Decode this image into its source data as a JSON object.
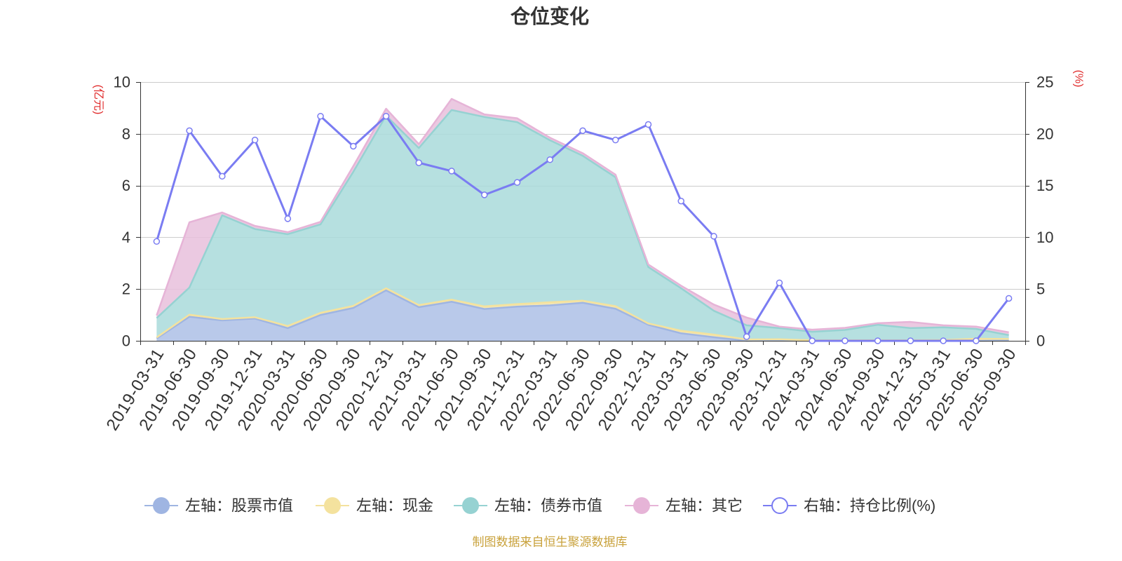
{
  "source_note": "制图数据来自恒生聚源数据库",
  "chart_data": {
    "type": "area",
    "stacked": true,
    "title": "仓位变化",
    "grid": true,
    "legend_position": "bottom",
    "categories": [
      "2019-03-31",
      "2019-06-30",
      "2019-09-30",
      "2019-12-31",
      "2020-03-31",
      "2020-06-30",
      "2020-09-30",
      "2020-12-31",
      "2021-03-31",
      "2021-06-30",
      "2021-09-30",
      "2021-12-31",
      "2022-03-31",
      "2022-06-30",
      "2022-09-30",
      "2022-12-31",
      "2023-03-31",
      "2023-06-30",
      "2023-09-30",
      "2023-12-31",
      "2024-03-31",
      "2024-06-30",
      "2024-09-30",
      "2024-12-31",
      "2025-03-31",
      "2025-06-30",
      "2025-09-30"
    ],
    "y_axes": [
      {
        "label": "(亿元)",
        "min": 0,
        "max": 10,
        "ticks": [
          0,
          2,
          4,
          6,
          8,
          10
        ]
      },
      {
        "label": "(%)",
        "min": 0,
        "max": 25,
        "ticks": [
          0,
          5,
          10,
          15,
          20,
          25
        ]
      }
    ],
    "series": [
      {
        "name": "左轴：股票市值",
        "y_axis": 0,
        "stack": true,
        "color": "#9fb5e2",
        "fill": "#adc0e6",
        "values": [
          0.09,
          0.93,
          0.79,
          0.86,
          0.49,
          1.0,
          1.27,
          1.95,
          1.3,
          1.51,
          1.23,
          1.32,
          1.37,
          1.47,
          1.24,
          0.62,
          0.29,
          0.14,
          0.0,
          0.03,
          0,
          0,
          0,
          0,
          0,
          0,
          0.01
        ]
      },
      {
        "name": "左轴：现金",
        "y_axis": 0,
        "stack": true,
        "color": "#f4e29e",
        "fill": "#f1e2a6",
        "values": [
          0.04,
          0.08,
          0.05,
          0.05,
          0.08,
          0.08,
          0.08,
          0.08,
          0.08,
          0.08,
          0.1,
          0.1,
          0.12,
          0.08,
          0.1,
          0.05,
          0.1,
          0.1,
          0.05,
          0.03,
          0.02,
          0.02,
          0.02,
          0.02,
          0.03,
          0.08,
          0.06
        ]
      },
      {
        "name": "左轴：债券市值",
        "y_axis": 0,
        "stack": true,
        "color": "#96d2d2",
        "fill": "#a9dbdb",
        "values": [
          0.75,
          1.05,
          4.01,
          3.41,
          3.55,
          3.42,
          5.18,
          6.67,
          6.07,
          7.33,
          7.32,
          7.03,
          6.26,
          5.6,
          4.98,
          2.18,
          1.64,
          0.92,
          0.55,
          0.43,
          0.33,
          0.4,
          0.6,
          0.47,
          0.49,
          0.38,
          0.15
        ]
      },
      {
        "name": "左轴：其它",
        "y_axis": 0,
        "stack": true,
        "color": "#e6b4d7",
        "fill": "#e8bfdc",
        "values": [
          0.1,
          2.52,
          0.11,
          0.12,
          0.08,
          0.1,
          0.22,
          0.27,
          0.15,
          0.43,
          0.1,
          0.15,
          0.1,
          0.1,
          0.1,
          0.1,
          0.1,
          0.24,
          0.3,
          0.06,
          0.08,
          0.08,
          0.06,
          0.24,
          0.08,
          0.09,
          0.11
        ]
      },
      {
        "name": "右轴：持仓比例(%)",
        "y_axis": 1,
        "stack": false,
        "color": "#7a7cf2",
        "values": [
          9.6,
          20.3,
          15.9,
          19.4,
          11.8,
          21.7,
          18.8,
          21.7,
          17.2,
          16.4,
          14.1,
          15.3,
          17.5,
          20.3,
          19.4,
          20.9,
          13.5,
          10.1,
          0.4,
          5.6,
          0,
          0,
          0,
          0,
          0,
          0,
          4.1
        ]
      }
    ]
  }
}
